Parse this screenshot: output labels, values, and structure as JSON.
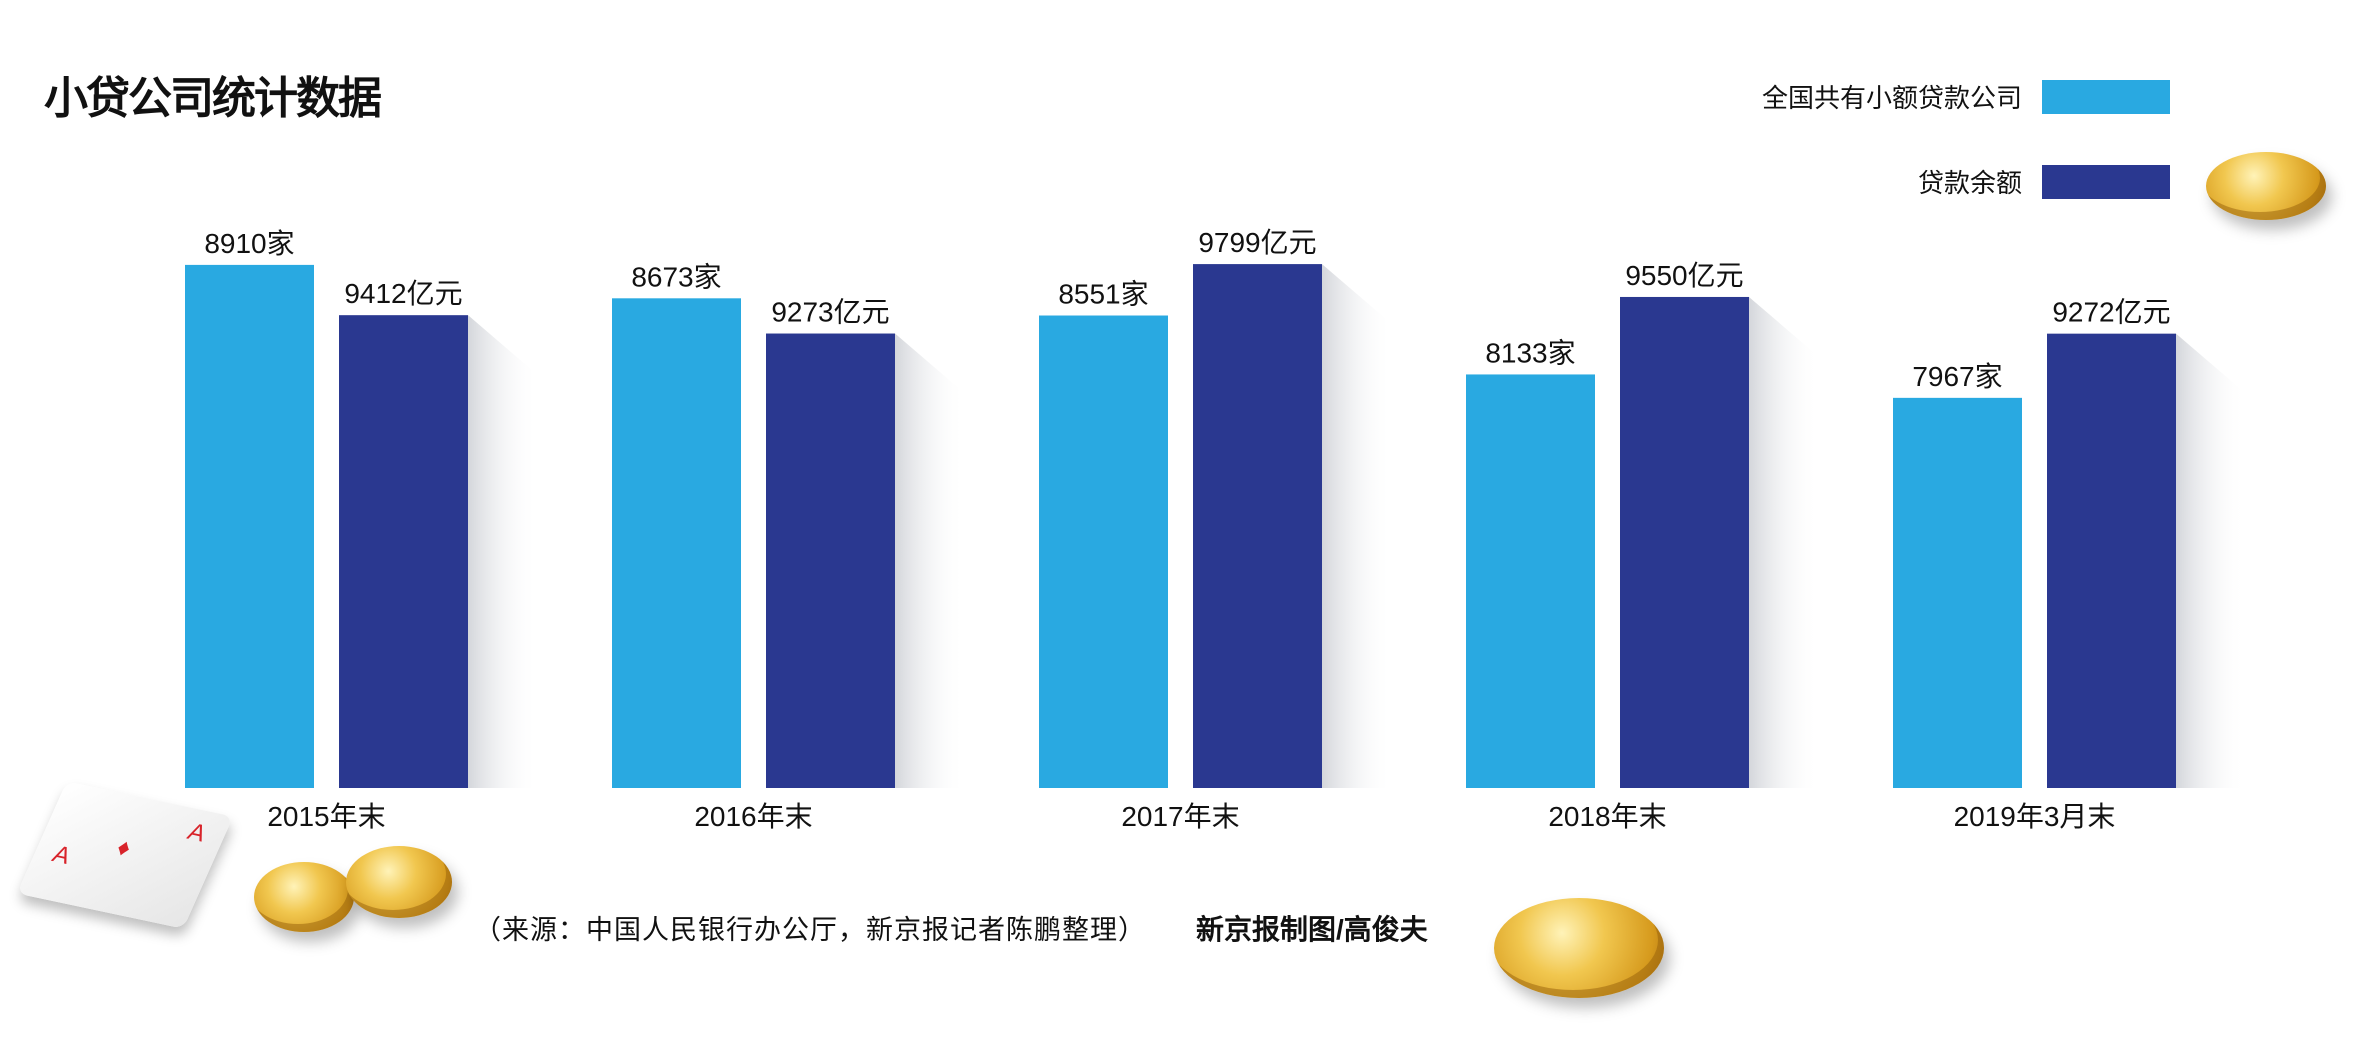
{
  "title": "小贷公司统计数据",
  "legend": [
    {
      "label": "全国共有小额贷款公司",
      "color": "#29a9e1"
    },
    {
      "label": "贷款余额",
      "color": "#2a3890"
    }
  ],
  "chart_data": {
    "type": "bar",
    "title": "小贷公司统计数据",
    "categories": [
      "2015年末",
      "2016年末",
      "2017年末",
      "2018年末",
      "2019年3月末"
    ],
    "series": [
      {
        "name": "全国共有小额贷款公司",
        "unit": "家",
        "color": "#29a9e1",
        "values": [
          8910,
          8673,
          8551,
          8133,
          7967
        ]
      },
      {
        "name": "贷款余额",
        "unit": "亿元",
        "color": "#2a3890",
        "values": [
          9412,
          9273,
          9799,
          9550,
          9272
        ]
      }
    ],
    "data_labels": [
      [
        "8910家",
        "8673家",
        "8551家",
        "8133家",
        "7967家"
      ],
      [
        "9412亿元",
        "9273亿元",
        "9799亿元",
        "9550亿元",
        "9272亿元"
      ]
    ],
    "grid": false,
    "legend_position": "top-right"
  },
  "footer": {
    "source": "（来源：中国人民银行办公厅，新京报记者陈鹏整理）",
    "credit": "新京报制图/高俊夫"
  },
  "decorations": [
    "coin-icon",
    "playing-card-icon"
  ]
}
